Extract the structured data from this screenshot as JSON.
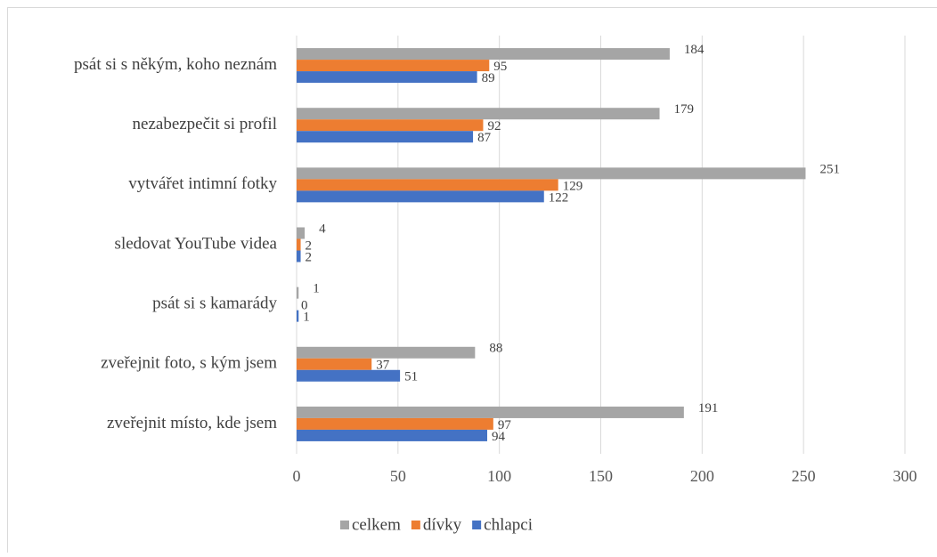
{
  "chart_data": {
    "type": "bar",
    "orientation": "horizontal",
    "categories": [
      "psát si s někým, koho neznám",
      "nezabezpečit si profil",
      "vytvářet intimní fotky",
      "sledovat YouTube videa",
      "psát si s kamarády",
      "zveřejnit foto, s kým jsem",
      "zveřejnit místo, kde jsem"
    ],
    "series": [
      {
        "name": "celkem",
        "color": "#a5a5a5",
        "values": [
          184,
          179,
          251,
          4,
          1,
          88,
          191
        ]
      },
      {
        "name": "dívky",
        "color": "#ed7d31",
        "values": [
          95,
          92,
          129,
          2,
          0,
          37,
          97
        ]
      },
      {
        "name": "chlapci",
        "color": "#4472c4",
        "values": [
          89,
          87,
          122,
          2,
          1,
          51,
          94
        ]
      }
    ],
    "xlim": [
      0,
      300
    ],
    "xticks": [
      0,
      50,
      100,
      150,
      200,
      250,
      300
    ],
    "grid": true,
    "legend": "bottom"
  }
}
